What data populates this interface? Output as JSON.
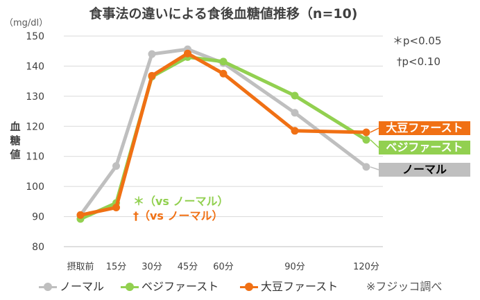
{
  "chart_data": {
    "type": "line",
    "title": "食事法の違いによる食後血糖値推移（n=10)",
    "unit": "（mg/dl）",
    "ylabel": "血糖値",
    "xlabel": "",
    "categories": [
      "摂取前",
      "15分",
      "30分",
      "45分",
      "60分",
      "90分",
      "120分"
    ],
    "x_minutes": [
      0,
      15,
      30,
      45,
      60,
      90,
      120
    ],
    "ylim": [
      80,
      150
    ],
    "yticks": [
      "150",
      "140",
      "130",
      "120",
      "110",
      "100",
      "90",
      "80"
    ],
    "grid": true,
    "legend_position": "bottom",
    "series": [
      {
        "name": "ノーマル",
        "color": "#bfbfbf",
        "values": [
          90.5,
          106.8,
          144.0,
          145.6,
          141.0,
          124.5,
          106.5
        ]
      },
      {
        "name": "ベジファースト",
        "color": "#92d050",
        "values": [
          89.2,
          94.5,
          136.5,
          143.0,
          141.5,
          130.2,
          115.5
        ]
      },
      {
        "name": "大豆ファースト",
        "color": "#f07014",
        "values": [
          90.5,
          93.0,
          136.8,
          144.2,
          137.5,
          118.5,
          118.0
        ]
      }
    ],
    "end_labels": [
      "大豆ファースト",
      "ベジファースト",
      "ノーマル"
    ],
    "annotations": {
      "veg": "＊（vs ノーマル）",
      "soy": "†（vs ノーマル）"
    },
    "significance": {
      "star": "＊p<0.05",
      "dagger": "†p<0.10"
    },
    "source_note": "※フジッコ調べ"
  }
}
